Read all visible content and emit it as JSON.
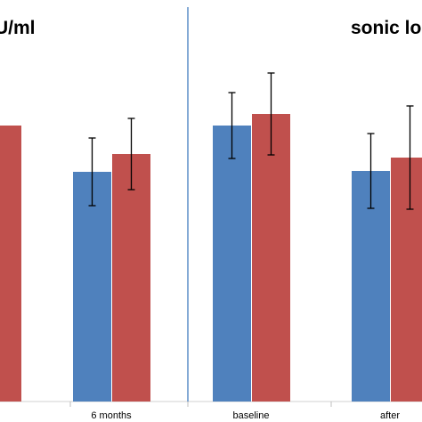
{
  "chart_data": [
    {
      "type": "bar",
      "title": "U/ml",
      "categories": [
        "",
        "6 months"
      ],
      "series": [
        {
          "color": "#4F81BD",
          "values": [
            null,
            258
          ],
          "error": [
            null,
            38
          ]
        },
        {
          "color": "#C0504D",
          "values": [
            310,
            278
          ],
          "error": [
            null,
            40
          ]
        }
      ],
      "ylim": [
        0,
        450
      ],
      "grid": false
    },
    {
      "type": "bar",
      "title": "sonic lo",
      "categories": [
        "baseline",
        "after"
      ],
      "series": [
        {
          "color": "#4F81BD",
          "values": [
            310,
            259
          ],
          "error": [
            37,
            42
          ]
        },
        {
          "color": "#C0504D",
          "values": [
            323,
            274
          ],
          "error": [
            46,
            58
          ]
        }
      ],
      "ylim": [
        0,
        450
      ],
      "grid": false
    }
  ]
}
